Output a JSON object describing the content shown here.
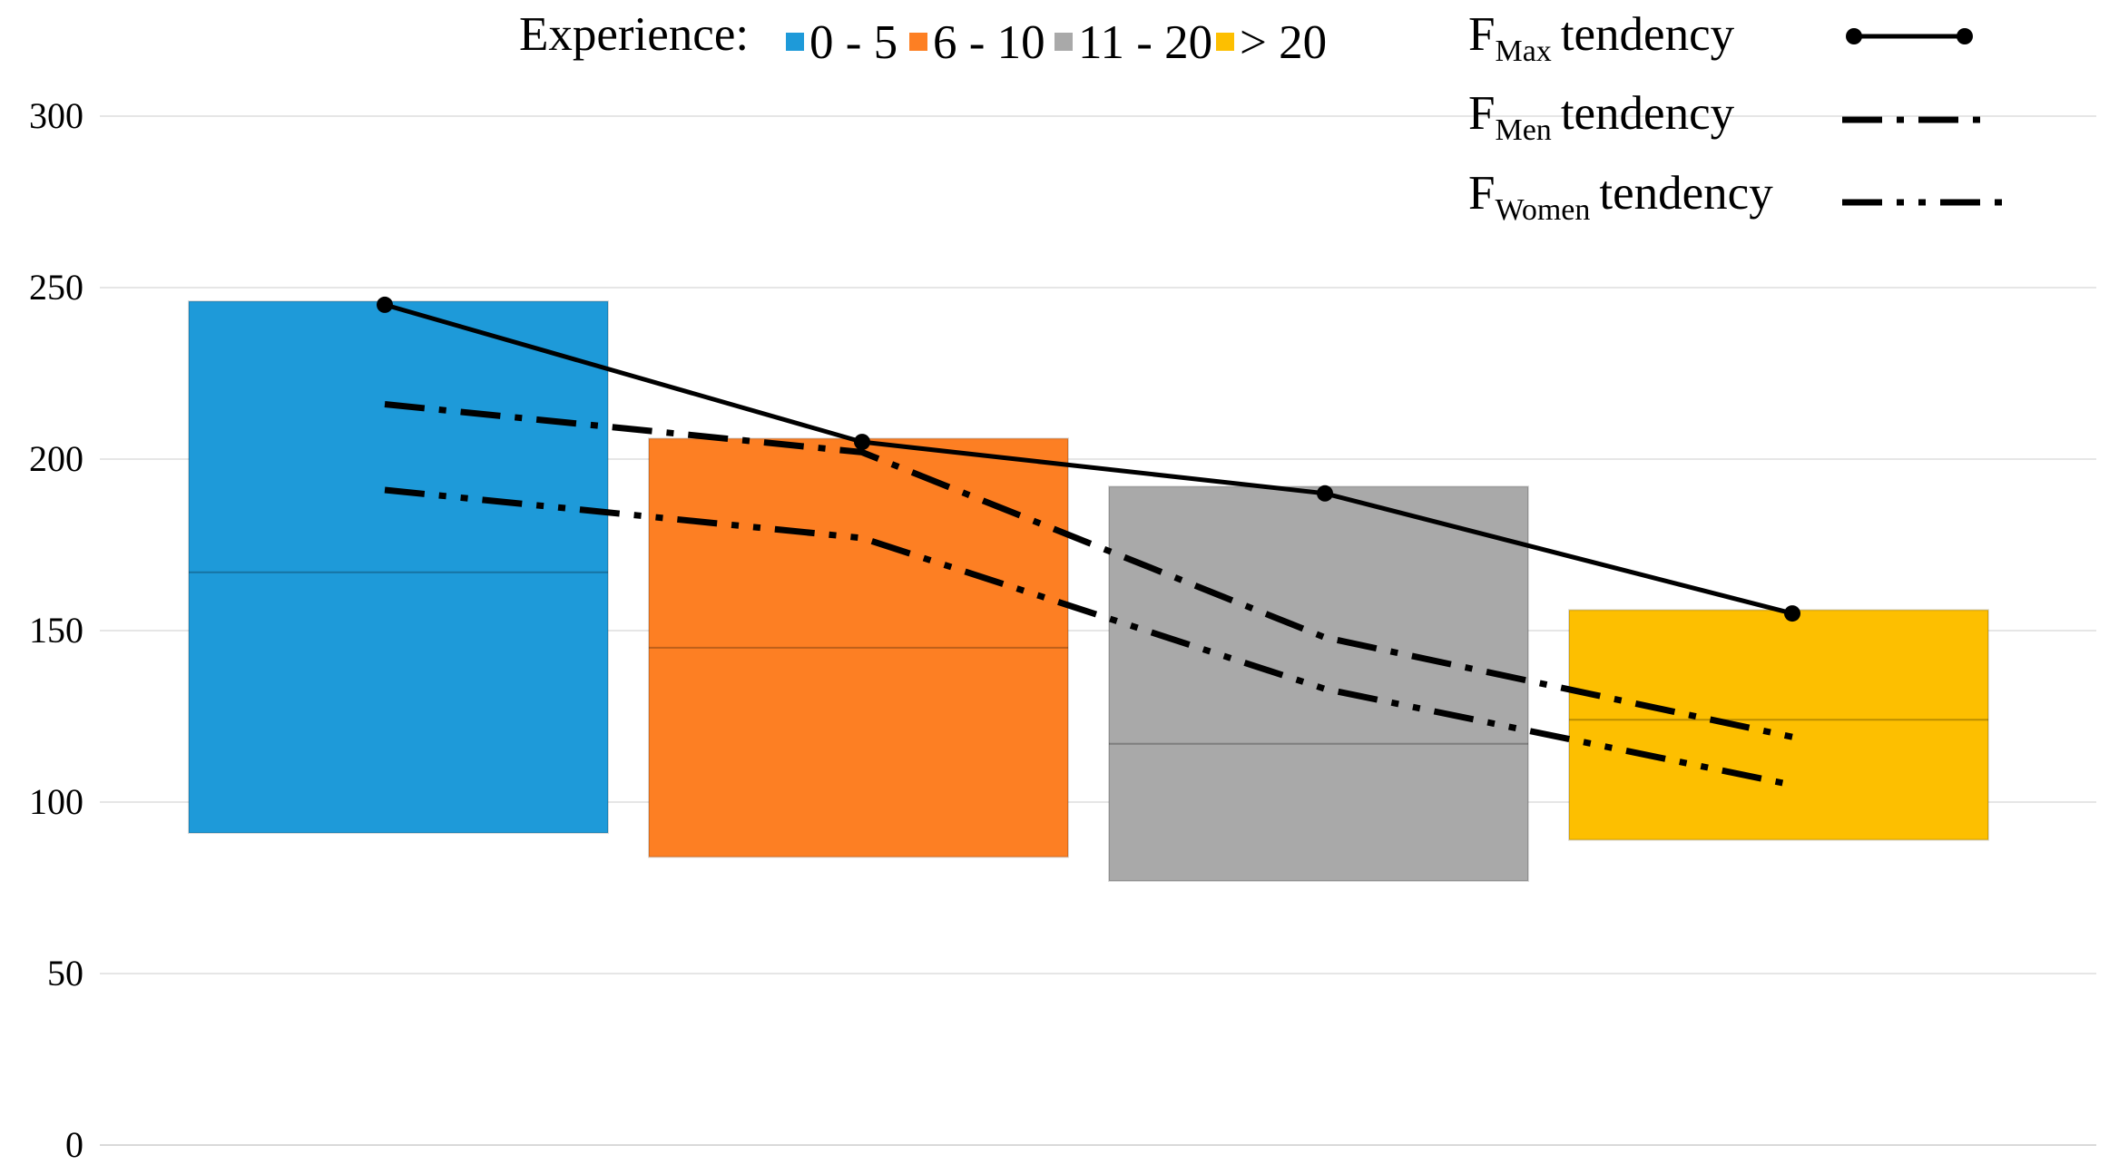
{
  "chart_data": {
    "type": "box",
    "categories": [
      "0 - 5",
      "6 - 10",
      "11 - 20",
      "> 20"
    ],
    "boxes": [
      {
        "category": "0 - 5",
        "low": 91,
        "median": 167,
        "high": 246,
        "color": "#1e9ad9"
      },
      {
        "category": "6 - 10",
        "low": 84,
        "median": 145,
        "high": 206,
        "color": "#fd7f23"
      },
      {
        "category": "11 - 20",
        "low": 77,
        "median": 117,
        "high": 192,
        "color": "#a9a9a9"
      },
      {
        "category": "> 20",
        "low": 89,
        "median": 124,
        "high": 156,
        "color": "#fdbf00"
      }
    ],
    "series": [
      {
        "key": "max",
        "values": [
          245,
          205,
          190,
          155
        ],
        "style": "solid-with-markers"
      },
      {
        "key": "men",
        "values": [
          216,
          202,
          148,
          119
        ],
        "style": "dash-dot"
      },
      {
        "key": "women",
        "values": [
          191,
          177,
          133,
          105
        ],
        "style": "dash-dot-dot"
      }
    ],
    "yticks": [
      0,
      50,
      100,
      150,
      200,
      250,
      300
    ],
    "ylim": [
      0,
      300
    ],
    "grid": true,
    "legend": {
      "experience_title": "Experience:",
      "tendency_word": "tendency",
      "max_main": "F",
      "max_sub": "Max",
      "men_main": "F",
      "men_sub": "Men",
      "women_main": "F",
      "women_sub": "Women",
      "placement": "top"
    }
  }
}
